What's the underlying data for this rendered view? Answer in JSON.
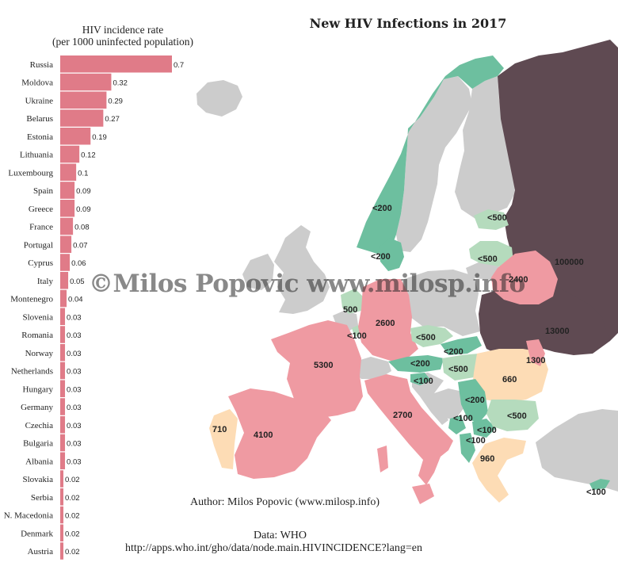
{
  "title": "New HIV Infections in 2017",
  "chart_title_line1": "HIV incidence rate",
  "chart_title_line2": "(per 1000 uninfected population)",
  "author": "Author: Milos Popovic (www.milosp.info)",
  "source_label": "Data:  WHO",
  "source_url": "http://apps.who.int/gho/data/node.main.HIVINCIDENCE?lang=en",
  "watermark": "©Milos Popovic www.milosp.info",
  "colors": {
    "bar": "#e07b88",
    "lt_100_200": "#6dbf9f",
    "lt_500": "#b5dbbd",
    "mid_500_1000": "#fddcb5",
    "high_1000_10000": "#ef9aa2",
    "very_high": "#5f4a52",
    "no_data": "#cccccc"
  },
  "chart_data": {
    "type": "bar",
    "orientation": "horizontal",
    "categories": [
      "Russia",
      "Moldova",
      "Ukraine",
      "Belarus",
      "Estonia",
      "Lithuania",
      "Luxembourg",
      "Spain",
      "Greece",
      "France",
      "Portugal",
      "Cyprus",
      "Italy",
      "Montenegro",
      "Slovenia",
      "Romania",
      "Norway",
      "Netherlands",
      "Hungary",
      "Germany",
      "Czechia",
      "Bulgaria",
      "Albania",
      "Slovakia",
      "Serbia",
      "N. Macedonia",
      "Denmark",
      "Austria"
    ],
    "values": [
      0.7,
      0.32,
      0.29,
      0.27,
      0.19,
      0.12,
      0.1,
      0.09,
      0.09,
      0.08,
      0.07,
      0.06,
      0.05,
      0.04,
      0.03,
      0.03,
      0.03,
      0.03,
      0.03,
      0.03,
      0.03,
      0.03,
      0.03,
      0.02,
      0.02,
      0.02,
      0.02,
      0.02
    ],
    "labels": [
      "0.7",
      "0.32",
      "0.29",
      "0.27",
      "0.19",
      "0.12",
      "0.1",
      "0.09",
      "0.09",
      "0.08",
      "0.07",
      "0.06",
      "0.05",
      "0.04",
      "0.03",
      "0.03",
      "0.03",
      "0.03",
      "0.03",
      "0.03",
      "0.03",
      "0.03",
      "0.03",
      "0.02",
      "0.02",
      "0.02",
      "0.02",
      "0.02"
    ]
  },
  "map_labels": [
    {
      "country": "Norway",
      "text": "<200"
    },
    {
      "country": "Estonia",
      "text": "<500"
    },
    {
      "country": "Latvia",
      "text": "<500"
    },
    {
      "country": "Denmark",
      "text": "<200"
    },
    {
      "country": "Russia",
      "text": "100000"
    },
    {
      "country": "Belarus",
      "text": "2400"
    },
    {
      "country": "Netherlands",
      "text": "500"
    },
    {
      "country": "Luxembourg",
      "text": "<100"
    },
    {
      "country": "Germany",
      "text": "2600"
    },
    {
      "country": "Czechia",
      "text": "<500"
    },
    {
      "country": "Slovakia",
      "text": "<200"
    },
    {
      "country": "Ukraine",
      "text": "13000"
    },
    {
      "country": "France",
      "text": "5300"
    },
    {
      "country": "Austria",
      "text": "<200"
    },
    {
      "country": "Hungary",
      "text": "<500"
    },
    {
      "country": "Moldova",
      "text": "1300"
    },
    {
      "country": "Slovenia",
      "text": "<100"
    },
    {
      "country": "Romania",
      "text": "660"
    },
    {
      "country": "Serbia",
      "text": "<200"
    },
    {
      "country": "Italy",
      "text": "2700"
    },
    {
      "country": "Bulgaria",
      "text": "<500"
    },
    {
      "country": "Portugal",
      "text": "710"
    },
    {
      "country": "Spain",
      "text": "4100"
    },
    {
      "country": "Montenegro",
      "text": "<100"
    },
    {
      "country": "N. Macedonia",
      "text": "<100"
    },
    {
      "country": "Albania",
      "text": "<100"
    },
    {
      "country": "Greece",
      "text": "960"
    },
    {
      "country": "Cyprus",
      "text": "<100"
    }
  ]
}
